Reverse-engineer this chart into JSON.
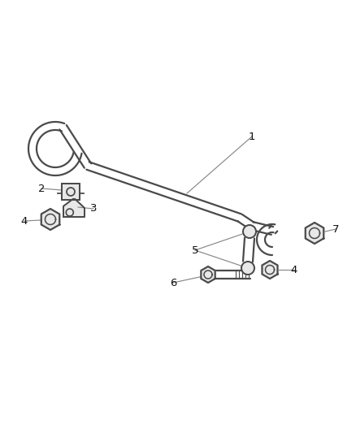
{
  "background_color": "#ffffff",
  "line_color": "#4a4a4a",
  "line_width": 1.6,
  "figsize": [
    4.38,
    5.33
  ],
  "dpi": 100,
  "label_color": "#222222",
  "leader_color": "#888888",
  "fill_color": "#e8e8e8"
}
